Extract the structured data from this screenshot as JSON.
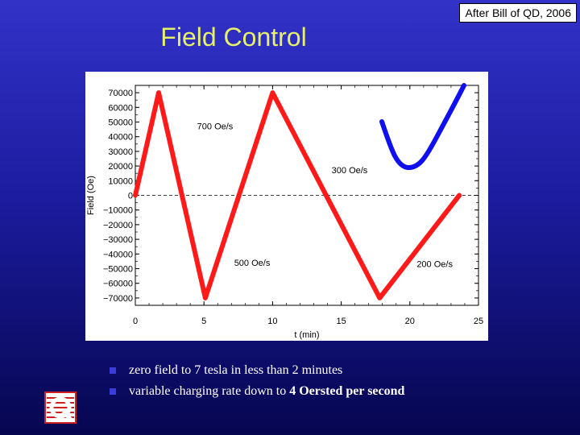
{
  "attribution": "After Bill of QD, 2006",
  "title": "Field Control",
  "bullets": [
    {
      "text": "zero field to 7 tesla in less than 2 minutes",
      "bold": ""
    },
    {
      "text": "variable charging rate down to ",
      "bold": "4 Oersted per second"
    }
  ],
  "colors": {
    "title": "#e6f06a",
    "series": "#ff1a1a",
    "sketch": "#1010ee",
    "background_top": "#3232c8",
    "background_bottom": "#060650"
  },
  "chart_data": {
    "type": "line",
    "xlabel": "t (min)",
    "ylabel": "Field (Oe)",
    "xlim": [
      0,
      25
    ],
    "ylim": [
      -75000,
      75000
    ],
    "xticks": [
      0,
      5,
      10,
      15,
      20,
      25
    ],
    "yticks": [
      70000,
      60000,
      50000,
      40000,
      30000,
      20000,
      10000,
      0,
      -10000,
      -20000,
      -30000,
      -40000,
      -50000,
      -60000,
      -70000
    ],
    "ytick_labels": [
      "70000",
      "60000",
      "50000",
      "40000",
      "30000",
      "20000",
      "10000",
      "0",
      "−10000",
      "−20000",
      "−30000",
      "−40000",
      "−50000",
      "−60000",
      "−70000"
    ],
    "zero_line": "dashed",
    "grid": false,
    "series": [
      {
        "x": [
          0,
          1.7,
          5.1,
          10.0,
          17.8,
          23.6
        ],
        "y": [
          0,
          70000,
          -70000,
          70000,
          -70000,
          0
        ]
      }
    ],
    "annotations": [
      {
        "text": "700 Oe/s",
        "x": 4.5,
        "y": 45000
      },
      {
        "text": "300 Oe/s",
        "x": 14.3,
        "y": 15000
      },
      {
        "text": "500 Oe/s",
        "x": 7.2,
        "y": -48000
      },
      {
        "text": "200 Oe/s",
        "x": 20.5,
        "y": -49000
      }
    ]
  }
}
